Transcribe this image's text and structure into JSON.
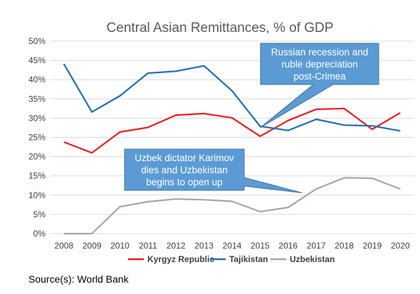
{
  "chart_data": {
    "type": "line",
    "title": "Central Asian Remittances, % of GDP",
    "xlabel": "",
    "ylabel": "",
    "x": [
      2008,
      2009,
      2010,
      2011,
      2012,
      2013,
      2014,
      2015,
      2016,
      2017,
      2018,
      2019,
      2020
    ],
    "ylim": [
      0,
      50
    ],
    "y_ticks": [
      "0%",
      "5%",
      "10%",
      "15%",
      "20%",
      "25%",
      "30%",
      "35%",
      "40%",
      "45%",
      "50%"
    ],
    "grid": true,
    "legend_position": "bottom",
    "series": [
      {
        "name": "Kyrgyz Republic",
        "color": "#ee1c1c",
        "values": [
          23.8,
          21.0,
          26.4,
          27.6,
          30.8,
          31.2,
          30.1,
          25.3,
          29.4,
          32.3,
          32.5,
          27.1,
          31.4
        ]
      },
      {
        "name": "Tajikistan",
        "color": "#1f6fb4",
        "values": [
          44.1,
          31.6,
          35.8,
          41.7,
          42.2,
          43.6,
          37.1,
          27.9,
          26.8,
          29.7,
          28.2,
          28.0,
          26.7
        ]
      },
      {
        "name": "Uzbekistan",
        "color": "#a6a6a6",
        "values": [
          0.0,
          0.0,
          7.0,
          8.3,
          9.0,
          8.8,
          8.4,
          5.7,
          6.8,
          11.6,
          14.5,
          14.4,
          11.6
        ]
      }
    ],
    "annotations": [
      {
        "lines": [
          "Russian recession and",
          "ruble depreciation",
          "post-Crimea"
        ],
        "target_x": 2015
      },
      {
        "lines": [
          "Uzbek dictator Karimov",
          "dies and Uzbekistan",
          "begins to open up"
        ],
        "target_x": 2016.5
      }
    ]
  },
  "source": "Source(s): World Bank",
  "colors": {
    "grid": "#d9d9d9",
    "callout_fill": "#5b9bd5",
    "callout_stroke": "#41719c"
  }
}
